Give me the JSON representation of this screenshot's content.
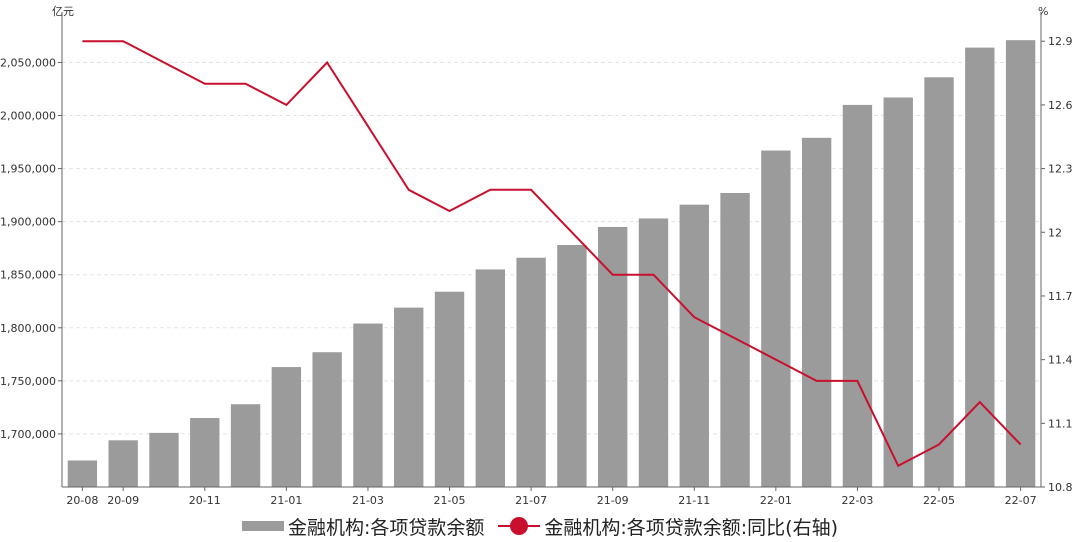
{
  "chart_data": {
    "type": "bar+line",
    "left_axis_unit": "亿元",
    "right_axis_unit": "%",
    "categories": [
      "20-08",
      "20-09",
      "20-10",
      "20-11",
      "20-12",
      "21-01",
      "21-02",
      "21-03",
      "21-04",
      "21-05",
      "21-06",
      "21-07",
      "21-08",
      "21-09",
      "21-10",
      "21-11",
      "21-12",
      "22-01",
      "22-02",
      "22-03",
      "22-04",
      "22-05",
      "22-06",
      "22-07"
    ],
    "x_tick_labels": [
      "20-08",
      "20-09",
      "20-11",
      "21-01",
      "21-03",
      "21-05",
      "21-07",
      "21-09",
      "21-11",
      "22-01",
      "22-03",
      "22-05",
      "22-07"
    ],
    "left_ylim": [
      1650000,
      2090000
    ],
    "left_ticks": [
      1700000,
      1750000,
      1800000,
      1850000,
      1900000,
      1950000,
      2000000,
      2050000
    ],
    "left_tick_labels": [
      "1,700,000",
      "1,750,000",
      "1,800,000",
      "1,850,000",
      "1,900,000",
      "1,950,000",
      "2,000,000",
      "2,050,000"
    ],
    "right_ylim": [
      10.8,
      13.0
    ],
    "right_ticks": [
      10.8,
      11.1,
      11.4,
      11.7,
      12.0,
      12.3,
      12.6,
      12.9
    ],
    "right_tick_labels": [
      "10.8",
      "11.1",
      "11.4",
      "11.7",
      "12",
      "12.3",
      "12.6",
      "12.9"
    ],
    "grid": true,
    "legend_position": "bottom-center",
    "series": [
      {
        "name": "金融机构:各项贷款余额",
        "type": "bar",
        "axis": "left",
        "color": "#9b9b9b",
        "values": [
          1675000,
          1694000,
          1701000,
          1715000,
          1728000,
          1763000,
          1777000,
          1804000,
          1819000,
          1834000,
          1855000,
          1866000,
          1878000,
          1895000,
          1903000,
          1916000,
          1927000,
          1967000,
          1979000,
          2010000,
          2017000,
          2036000,
          2064000,
          2071000
        ]
      },
      {
        "name": "金融机构:各项贷款余额:同比(右轴)",
        "type": "line",
        "axis": "right",
        "color": "#c8102e",
        "values": [
          12.9,
          12.9,
          12.8,
          12.7,
          12.7,
          12.6,
          12.8,
          12.5,
          12.2,
          12.1,
          12.2,
          12.2,
          12.0,
          11.8,
          11.8,
          11.6,
          11.5,
          11.4,
          11.3,
          11.3,
          10.9,
          11.0,
          11.2,
          11.0
        ]
      }
    ]
  },
  "legend": {
    "bar_label": "金融机构:各项贷款余额",
    "line_label": "金融机构:各项贷款余额:同比(右轴)"
  }
}
